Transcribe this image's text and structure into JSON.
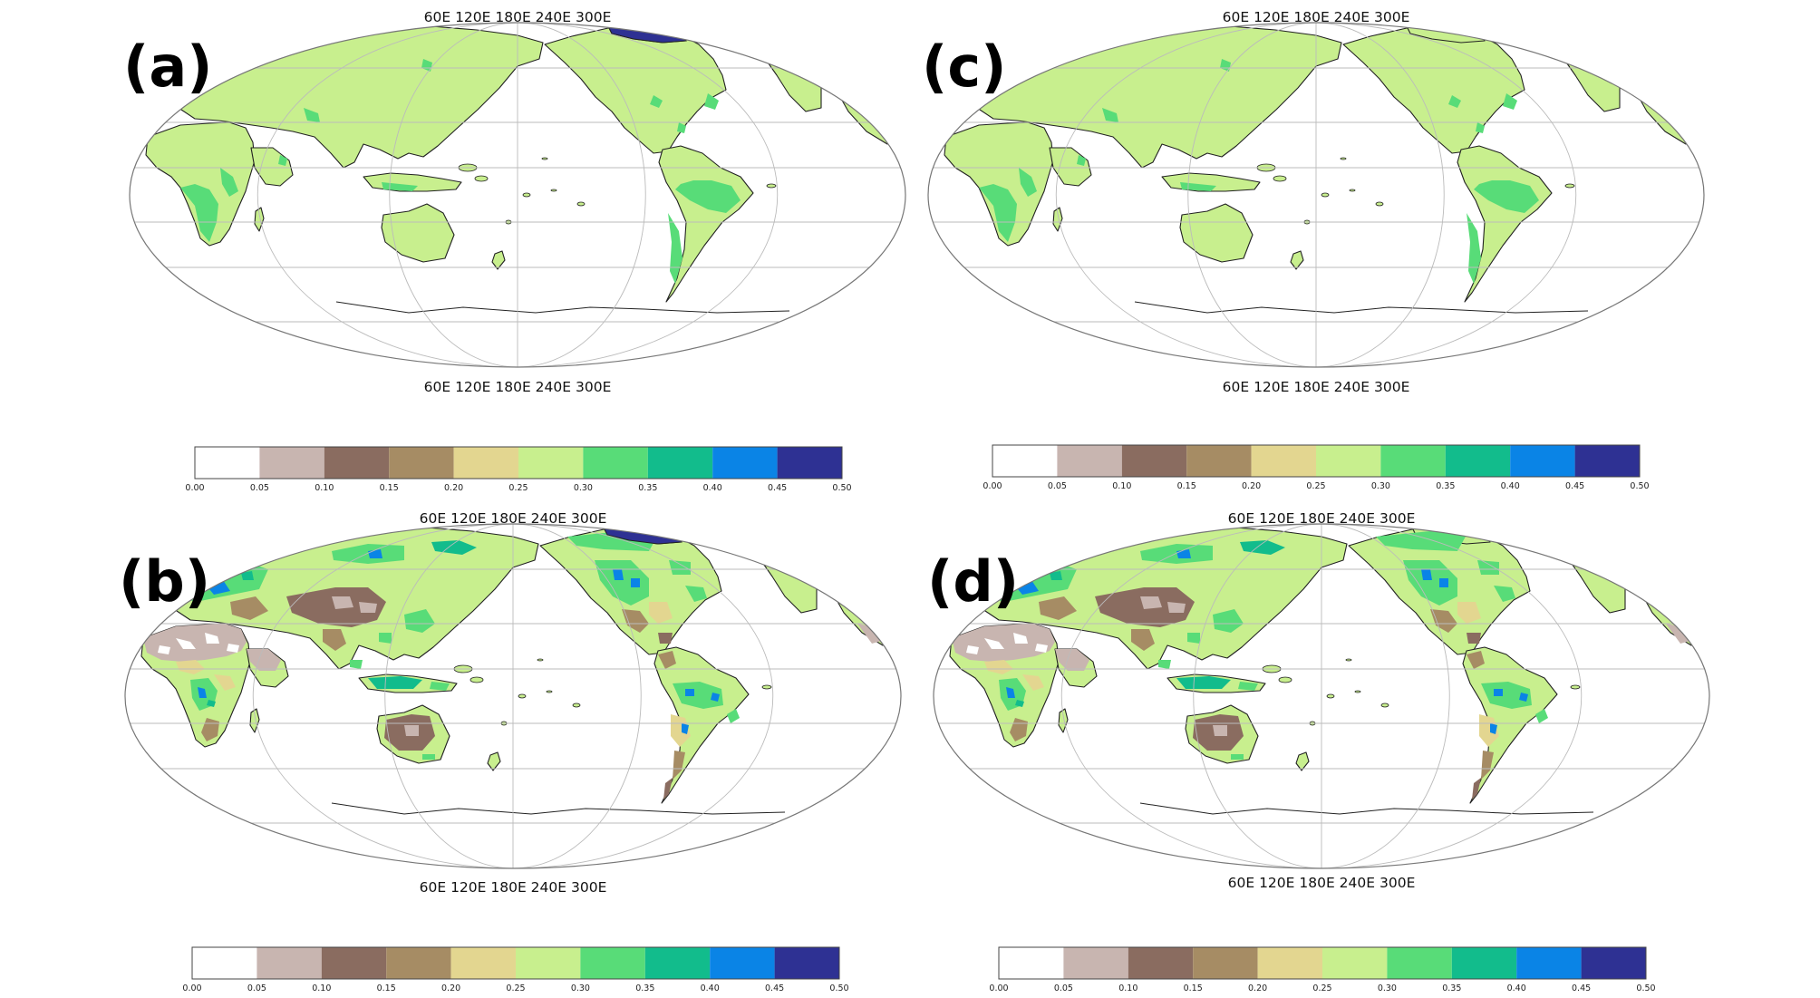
{
  "palette": {
    "land_base": "#c8ef8e",
    "ocean": "#ffffff",
    "coast": "#222222",
    "grid": "#bbbbbb"
  },
  "longitude_labels": [
    "60E",
    "120E",
    "180E",
    "240E",
    "300E"
  ],
  "colorbar": {
    "ticks": [
      "0.00",
      "0.05",
      "0.10",
      "0.15",
      "0.20",
      "0.25",
      "0.30",
      "0.35",
      "0.40",
      "0.45",
      "0.50"
    ],
    "colors": [
      "#ffffff",
      "#c8b5b0",
      "#8a6c60",
      "#a68c64",
      "#e3d690",
      "#c8ef8e",
      "#58dc78",
      "#12bc8c",
      "#0a84e6",
      "#2e3193"
    ]
  },
  "panels": [
    {
      "id": "a",
      "label": "(a)",
      "style": "smooth",
      "alaska_dark": true
    },
    {
      "id": "c",
      "label": "(c)",
      "style": "smooth",
      "alaska_dark": false
    },
    {
      "id": "b",
      "label": "(b)",
      "style": "varied",
      "alaska_dark": true
    },
    {
      "id": "d",
      "label": "(d)",
      "style": "varied",
      "alaska_dark": false
    }
  ]
}
